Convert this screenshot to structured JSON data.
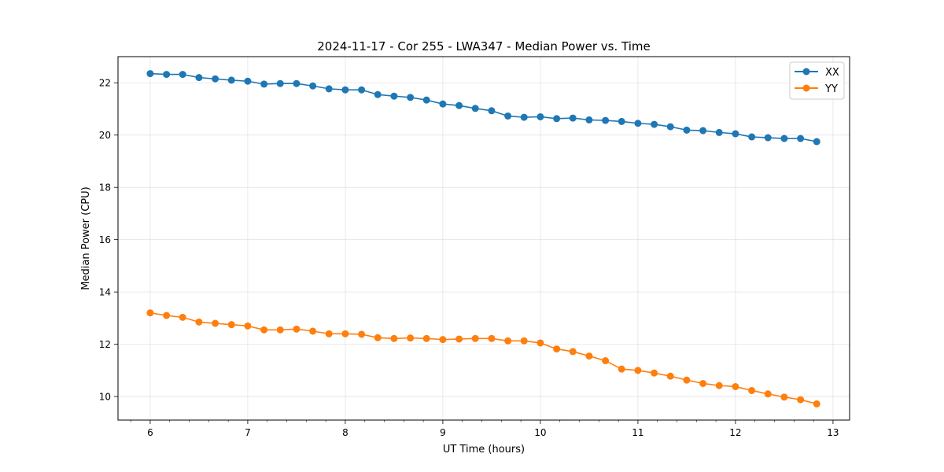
{
  "chart_data": {
    "type": "line",
    "title": "2024-11-17 - Cor 255 - LWA347 - Median Power vs. Time",
    "xlabel": "UT Time (hours)",
    "ylabel": "Median Power (CPU)",
    "xlim": [
      5.67,
      13.17
    ],
    "ylim": [
      9.1,
      23.0
    ],
    "xticks": [
      6,
      7,
      8,
      9,
      10,
      11,
      12,
      13
    ],
    "yticks": [
      10,
      12,
      14,
      16,
      18,
      20,
      22
    ],
    "grid": true,
    "legend_position": "top-right",
    "x": [
      6.0,
      6.167,
      6.333,
      6.5,
      6.667,
      6.833,
      7.0,
      7.167,
      7.333,
      7.5,
      7.667,
      7.833,
      8.0,
      8.167,
      8.333,
      8.5,
      8.667,
      8.833,
      9.0,
      9.167,
      9.333,
      9.5,
      9.667,
      9.833,
      10.0,
      10.167,
      10.333,
      10.5,
      10.667,
      10.833,
      11.0,
      11.167,
      11.333,
      11.5,
      11.667,
      11.833,
      12.0,
      12.167,
      12.333,
      12.5,
      12.667,
      12.833
    ],
    "series": [
      {
        "name": "XX",
        "color": "#1f77b4",
        "values": [
          22.35,
          22.32,
          22.32,
          22.2,
          22.15,
          22.1,
          22.06,
          21.95,
          21.97,
          21.97,
          21.88,
          21.77,
          21.73,
          21.73,
          21.55,
          21.49,
          21.44,
          21.34,
          21.19,
          21.13,
          21.02,
          20.93,
          20.73,
          20.68,
          20.7,
          20.63,
          20.65,
          20.58,
          20.56,
          20.52,
          20.45,
          20.41,
          20.32,
          20.19,
          20.17,
          20.1,
          20.05,
          19.93,
          19.9,
          19.87,
          19.87,
          19.75
        ]
      },
      {
        "name": "YY",
        "color": "#ff7f0e",
        "values": [
          13.2,
          13.1,
          13.03,
          12.85,
          12.8,
          12.75,
          12.7,
          12.55,
          12.55,
          12.58,
          12.5,
          12.4,
          12.4,
          12.38,
          12.25,
          12.22,
          12.24,
          12.22,
          12.18,
          12.2,
          12.22,
          12.22,
          12.13,
          12.13,
          12.05,
          11.82,
          11.72,
          11.55,
          11.37,
          11.05,
          11.0,
          10.9,
          10.78,
          10.63,
          10.5,
          10.42,
          10.38,
          10.23,
          10.1,
          9.98,
          9.88,
          9.72
        ]
      }
    ]
  }
}
